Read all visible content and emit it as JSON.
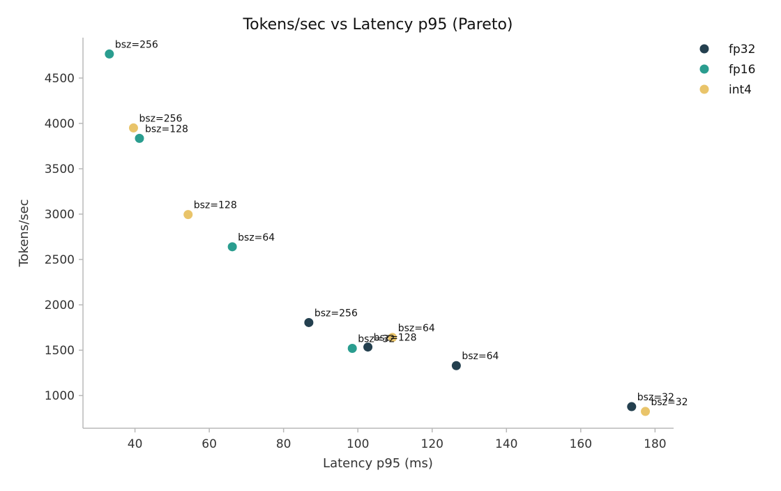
{
  "chart_data": {
    "type": "scatter",
    "title": "Tokens/sec vs Latency p95 (Pareto)",
    "xlabel": "Latency p95 (ms)",
    "ylabel": "Tokens/sec",
    "xlim": [
      26,
      185
    ],
    "ylim": [
      640,
      4945
    ],
    "xticks": [
      40,
      60,
      80,
      100,
      120,
      140,
      160,
      180
    ],
    "yticks": [
      1000,
      1500,
      2000,
      2500,
      3000,
      3500,
      4000,
      4500
    ],
    "grid": false,
    "legend_position": "upper-right-outside",
    "series": [
      {
        "name": "fp32",
        "color": "#24404f",
        "points": [
          {
            "x": 86.8,
            "y": 1805,
            "label": "bsz=256"
          },
          {
            "x": 102.7,
            "y": 1535,
            "label": "bsz=128"
          },
          {
            "x": 126.5,
            "y": 1330,
            "label": "bsz=64"
          },
          {
            "x": 173.7,
            "y": 878,
            "label": "bsz=32"
          }
        ]
      },
      {
        "name": "fp16",
        "color": "#2a9d8f",
        "points": [
          {
            "x": 33.1,
            "y": 4765,
            "label": "bsz=256"
          },
          {
            "x": 41.2,
            "y": 3835,
            "label": "bsz=128"
          },
          {
            "x": 66.2,
            "y": 2640,
            "label": "bsz=64"
          },
          {
            "x": 98.5,
            "y": 1520,
            "label": "bsz=32"
          }
        ]
      },
      {
        "name": "int4",
        "color": "#e9c46a",
        "points": [
          {
            "x": 39.6,
            "y": 3950,
            "label": "bsz=256"
          },
          {
            "x": 54.3,
            "y": 2995,
            "label": "bsz=128"
          },
          {
            "x": 109.3,
            "y": 1640,
            "label": "bsz=64"
          },
          {
            "x": 177.4,
            "y": 825,
            "label": "bsz=32"
          }
        ]
      }
    ]
  }
}
